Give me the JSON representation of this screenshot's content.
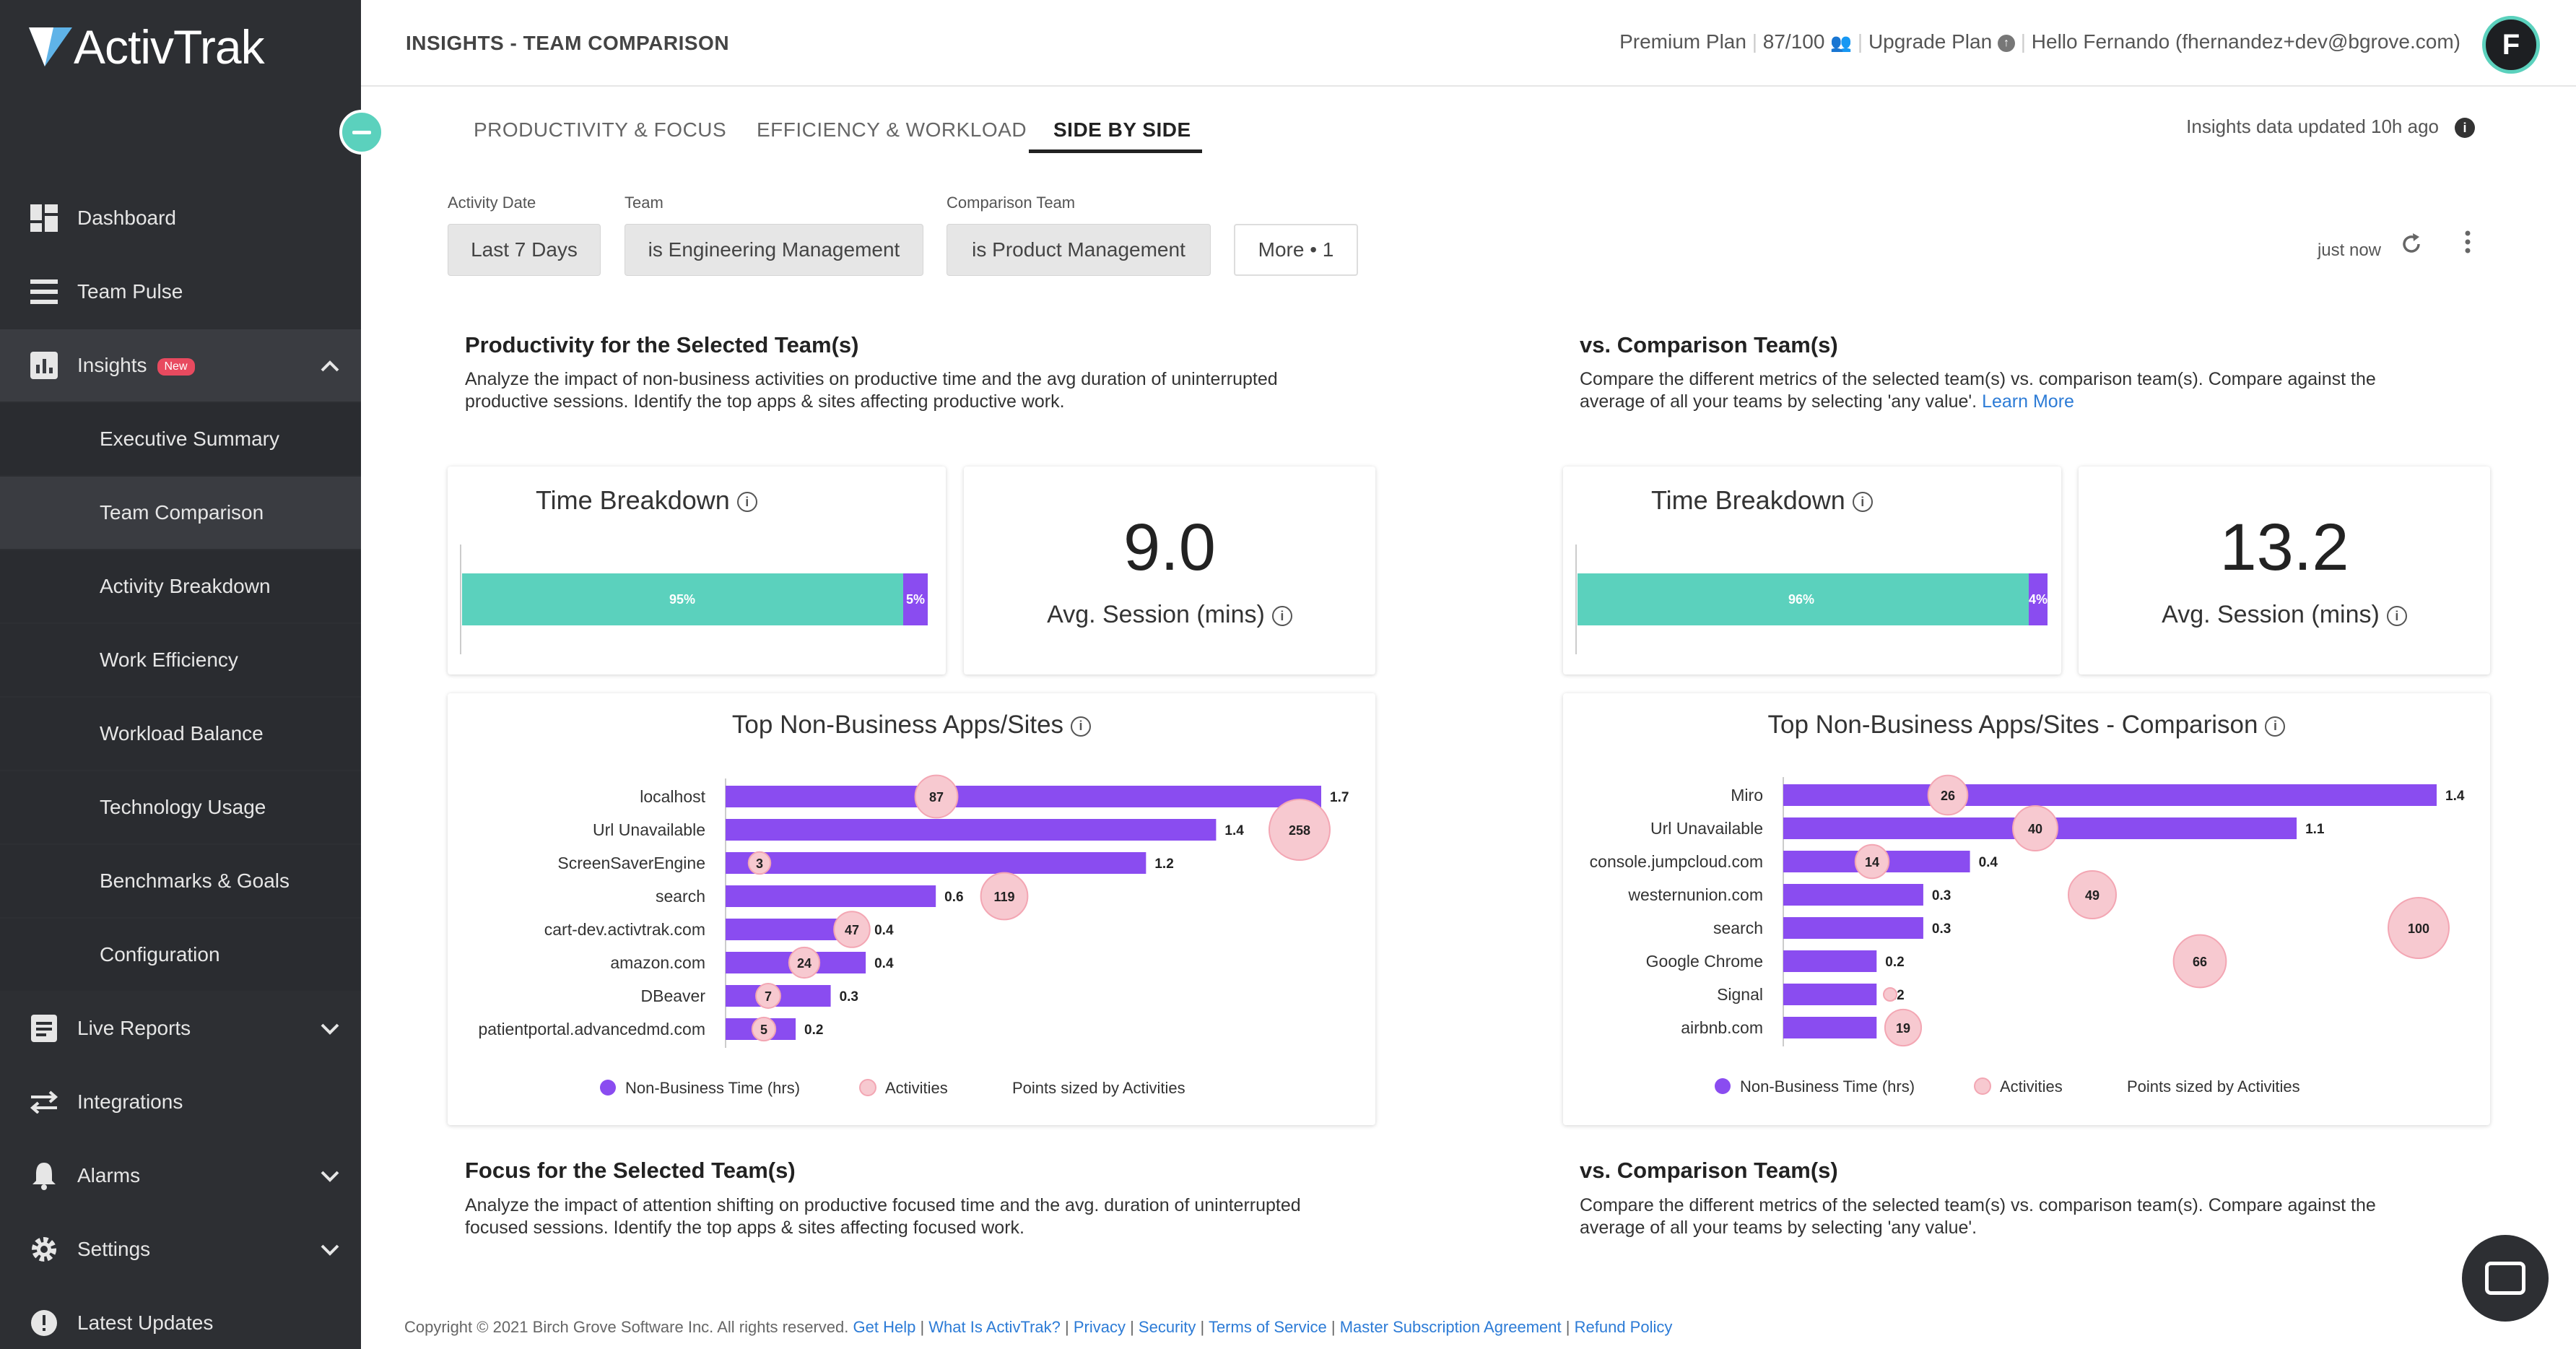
{
  "sidebar": {
    "logo": "ActivTrak",
    "nav": [
      {
        "label": "Dashboard",
        "icon": "dashboard-icon"
      },
      {
        "label": "Team Pulse",
        "icon": "team-pulse-icon"
      },
      {
        "label": "Insights",
        "icon": "insights-icon",
        "badge": "New"
      },
      {
        "label": "Live Reports",
        "icon": "live-reports-icon"
      },
      {
        "label": "Integrations",
        "icon": "integrations-icon"
      },
      {
        "label": "Alarms",
        "icon": "bell-icon"
      },
      {
        "label": "Settings",
        "icon": "gear-icon"
      },
      {
        "label": "Latest Updates",
        "icon": "updates-icon"
      }
    ],
    "insights_sub": [
      "Executive Summary",
      "Team Comparison",
      "Activity Breakdown",
      "Work Efficiency",
      "Workload Balance",
      "Technology Usage",
      "Benchmarks & Goals",
      "Configuration"
    ]
  },
  "header": {
    "title": "INSIGHTS - TEAM COMPARISON",
    "plan": "Premium Plan",
    "usage": "87/100",
    "upgrade": "Upgrade Plan",
    "greeting": "Hello Fernando (fhernandez+dev@bgrove.com)",
    "avatar": "F"
  },
  "tabs": [
    "PRODUCTIVITY & FOCUS",
    "EFFICIENCY & WORKLOAD",
    "SIDE BY SIDE"
  ],
  "updated": "Insights data updated 10h ago",
  "filters": {
    "activity_date_label": "Activity Date",
    "activity_date": "Last 7 Days",
    "team_label": "Team",
    "team": "is Engineering Management",
    "comparison_label": "Comparison Team",
    "comparison": "is Product Management",
    "more": "More • 1",
    "refreshed": "just now"
  },
  "left": {
    "title": "Productivity for the Selected Team(s)",
    "desc1": "Analyze the impact of non-business activities on productive time and the avg duration of uninterrupted",
    "desc2": "productive sessions. Identify the top apps & sites affecting productive work.",
    "time_breakdown": "Time Breakdown",
    "tb_a": "95%",
    "tb_b": "5%",
    "avg_value": "9.0",
    "avg_label": "Avg. Session (mins)",
    "chart_title": "Top Non-Business Apps/Sites",
    "focus_title": "Focus for the Selected Team(s)",
    "focus_desc1": "Analyze the impact of attention shifting on productive focused time and the avg. duration of uninterrupted",
    "focus_desc2": "focused sessions. Identify the top apps & sites affecting focused work."
  },
  "right": {
    "title": "vs. Comparison Team(s)",
    "desc1": "Compare the different metrics of the selected team(s) vs. comparison team(s). Compare against the",
    "desc2": "average of all your teams by selecting 'any value'.",
    "learn_more": "Learn More",
    "time_breakdown": "Time Breakdown",
    "tb_a": "96%",
    "tb_b": "4%",
    "avg_value": "13.2",
    "avg_label": "Avg. Session (mins)",
    "chart_title": "Top Non-Business Apps/Sites - Comparison",
    "focus_title": "vs. Comparison Team(s)",
    "focus_desc1": "Compare the different metrics of the selected team(s) vs. comparison team(s). Compare against the",
    "focus_desc2": "average of all your teams by selecting 'any value'."
  },
  "legend": {
    "series1": "Non-Business Time (hrs)",
    "series2": "Activities",
    "note": "Points sized by Activities"
  },
  "colors": {
    "accent": "#5bd1bd",
    "bar": "#8a4cf0",
    "bubble": "#f7c9d0",
    "sidebar": "#2d2f33"
  },
  "chart_data": [
    {
      "type": "bar",
      "title": "Top Non-Business Apps/Sites",
      "categories": [
        "localhost",
        "Url Unavailable",
        "ScreenSaverEngine",
        "search",
        "cart-dev.activtrak.com",
        "amazon.com",
        "DBeaver",
        "patientportal.advancedmd.com"
      ],
      "series": [
        {
          "name": "Non-Business Time (hrs)",
          "values": [
            1.7,
            1.4,
            1.2,
            0.6,
            0.4,
            0.4,
            0.3,
            0.2
          ]
        },
        {
          "name": "Activities",
          "values": [
            87,
            258,
            3,
            119,
            47,
            24,
            7,
            5
          ]
        }
      ],
      "xlim": [
        0,
        1.7
      ]
    },
    {
      "type": "bar",
      "title": "Top Non-Business Apps/Sites - Comparison",
      "categories": [
        "Miro",
        "Url Unavailable",
        "console.jumpcloud.com",
        "westernunion.com",
        "search",
        "Google Chrome",
        "Signal",
        "airbnb.com"
      ],
      "series": [
        {
          "name": "Non-Business Time (hrs)",
          "values": [
            1.4,
            1.1,
            0.4,
            0.3,
            0.3,
            0.2,
            0.2,
            0.2
          ]
        },
        {
          "name": "Activities",
          "values": [
            26,
            40,
            14,
            49,
            100,
            66,
            null,
            19
          ]
        }
      ],
      "xlim": [
        0,
        1.4
      ]
    }
  ],
  "footer": {
    "copyright": "Copyright © 2021 Birch Grove Software Inc.",
    "rights": "All rights reserved.",
    "links": [
      "Get Help",
      "What Is ActivTrak?",
      "Privacy",
      "Security",
      "Terms of Service",
      "Master Subscription Agreement",
      "Refund Policy"
    ]
  }
}
